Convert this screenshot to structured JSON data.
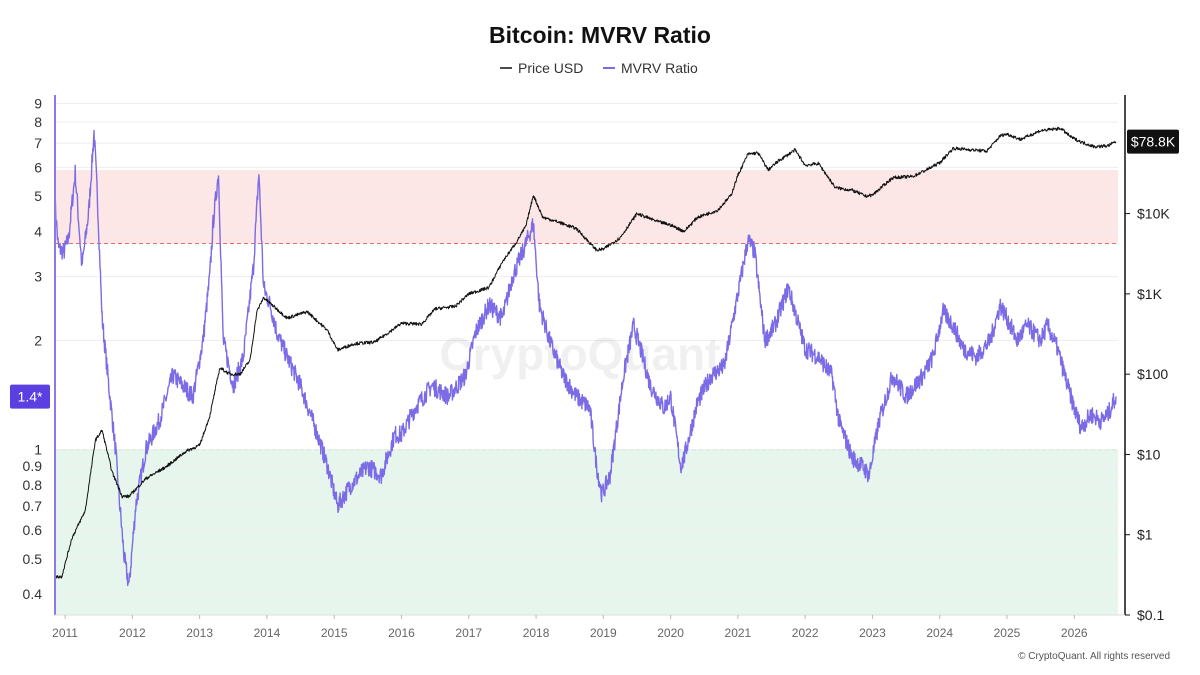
{
  "chart_data": {
    "type": "line",
    "title": "Bitcoin: MVRV Ratio",
    "watermark": "CryptoQuant",
    "copyright": "© CryptoQuant. All rights reserved",
    "legend": {
      "placement": "top-center",
      "entries": [
        "Price USD",
        "MVRV Ratio"
      ]
    },
    "colors": {
      "price": "#111111",
      "mvrv": "#7b6be6",
      "red_zone": "#fde2e2",
      "green_zone": "#e3f4ea",
      "red_line": "#e07070",
      "green_line": "#6cbf88",
      "badge": "#5b3fe0",
      "price_badge": "#111111"
    },
    "xaxis": {
      "ticks": [
        "2011",
        "2012",
        "2013",
        "2014",
        "2015",
        "2016",
        "2017",
        "2018",
        "2019",
        "2020",
        "2021",
        "2022",
        "2023",
        "2024",
        "2025",
        "2026"
      ],
      "range": [
        2010.85,
        2026.65
      ]
    },
    "yaxis_left": {
      "label": "",
      "scale": "log",
      "range": [
        0.35,
        9.5
      ],
      "ticks": [
        "9",
        "8",
        "7",
        "6",
        "5",
        "4",
        "3",
        "2",
        "1",
        "0.9",
        "0.8",
        "0.7",
        "0.6",
        "0.5",
        "0.4"
      ],
      "current_label": "1.4*"
    },
    "yaxis_right": {
      "label": "",
      "scale": "log",
      "range": [
        0.1,
        300000
      ],
      "ticks": [
        "$10K",
        "$1K",
        "$100",
        "$10",
        "$1",
        "$0.1"
      ],
      "current_label": "$78.8K"
    },
    "zones": [
      {
        "name": "",
        "from": 3.7,
        "to": 5.9,
        "axis": "left"
      },
      {
        "name": "",
        "from": 0.35,
        "to": 1.0,
        "axis": "left"
      }
    ],
    "series": [
      {
        "name": "Price USD",
        "axis": "right",
        "x": [
          2010.85,
          2010.95,
          2011.1,
          2011.3,
          2011.45,
          2011.55,
          2011.7,
          2011.85,
          2011.95,
          2012.2,
          2012.5,
          2012.8,
          2013.0,
          2013.15,
          2013.3,
          2013.45,
          2013.6,
          2013.75,
          2013.85,
          2013.95,
          2014.1,
          2014.3,
          2014.6,
          2014.9,
          2015.05,
          2015.3,
          2015.6,
          2015.85,
          2016.0,
          2016.3,
          2016.5,
          2016.8,
          2017.0,
          2017.3,
          2017.5,
          2017.7,
          2017.85,
          2017.96,
          2018.1,
          2018.3,
          2018.6,
          2018.9,
          2019.0,
          2019.25,
          2019.5,
          2019.8,
          2020.0,
          2020.2,
          2020.4,
          2020.7,
          2020.9,
          2021.0,
          2021.15,
          2021.3,
          2021.45,
          2021.6,
          2021.85,
          2022.0,
          2022.2,
          2022.45,
          2022.7,
          2022.9,
          2023.0,
          2023.3,
          2023.6,
          2023.8,
          2024.0,
          2024.2,
          2024.5,
          2024.7,
          2024.9,
          2025.0,
          2025.2,
          2025.5,
          2025.8,
          2025.95,
          2026.1,
          2026.3,
          2026.5,
          2026.62
        ],
        "values": [
          0.3,
          0.3,
          0.9,
          2.0,
          15,
          20,
          6,
          3,
          3,
          5,
          7,
          11,
          13,
          30,
          120,
          100,
          100,
          150,
          600,
          900,
          700,
          500,
          600,
          350,
          200,
          240,
          250,
          350,
          430,
          420,
          650,
          700,
          1000,
          1200,
          2500,
          4300,
          7000,
          17000,
          9000,
          8000,
          6500,
          3500,
          3600,
          5000,
          10000,
          8000,
          7200,
          6000,
          9000,
          11000,
          17000,
          30000,
          55000,
          57000,
          35000,
          45000,
          62000,
          40000,
          42000,
          21000,
          19500,
          16500,
          17000,
          28000,
          29000,
          35000,
          43000,
          65000,
          62000,
          60000,
          93000,
          98000,
          84000,
          108000,
          115000,
          90000,
          78000,
          68000,
          70000,
          78800
        ]
      },
      {
        "name": "MVRV Ratio",
        "axis": "left",
        "x": [
          2010.85,
          2010.9,
          2010.98,
          2011.05,
          2011.15,
          2011.25,
          2011.35,
          2011.43,
          2011.48,
          2011.55,
          2011.65,
          2011.75,
          2011.8,
          2011.88,
          2011.95,
          2012.05,
          2012.2,
          2012.4,
          2012.6,
          2012.75,
          2012.9,
          2013.05,
          2013.15,
          2013.2,
          2013.28,
          2013.35,
          2013.5,
          2013.65,
          2013.8,
          2013.88,
          2013.95,
          2014.05,
          2014.15,
          2014.3,
          2014.5,
          2014.75,
          2014.9,
          2015.05,
          2015.25,
          2015.5,
          2015.7,
          2015.9,
          2016.0,
          2016.2,
          2016.45,
          2016.7,
          2016.95,
          2017.1,
          2017.3,
          2017.5,
          2017.65,
          2017.8,
          2017.96,
          2018.05,
          2018.2,
          2018.4,
          2018.6,
          2018.8,
          2018.9,
          2018.98,
          2019.1,
          2019.3,
          2019.45,
          2019.55,
          2019.7,
          2019.9,
          2020.0,
          2020.15,
          2020.2,
          2020.4,
          2020.6,
          2020.8,
          2020.95,
          2021.05,
          2021.15,
          2021.25,
          2021.4,
          2021.55,
          2021.75,
          2021.85,
          2022.0,
          2022.2,
          2022.4,
          2022.5,
          2022.7,
          2022.85,
          2022.95,
          2023.1,
          2023.3,
          2023.5,
          2023.75,
          2023.9,
          2024.05,
          2024.2,
          2024.35,
          2024.55,
          2024.75,
          2024.9,
          2025.0,
          2025.15,
          2025.3,
          2025.5,
          2025.6,
          2025.75,
          2025.9,
          2026.0,
          2026.1,
          2026.25,
          2026.4,
          2026.5,
          2026.62
        ],
        "values": [
          4.8,
          3.6,
          3.5,
          3.8,
          5.8,
          3.2,
          4.5,
          7.5,
          5.0,
          2.3,
          1.5,
          1.0,
          0.75,
          0.5,
          0.42,
          0.7,
          1.0,
          1.2,
          1.6,
          1.5,
          1.4,
          2.0,
          3.0,
          4.2,
          5.8,
          2.0,
          1.5,
          1.8,
          3.2,
          5.8,
          2.8,
          2.5,
          2.1,
          1.8,
          1.5,
          1.1,
          0.9,
          0.7,
          0.8,
          0.9,
          0.85,
          1.1,
          1.1,
          1.3,
          1.5,
          1.4,
          1.6,
          2.1,
          2.5,
          2.3,
          3.0,
          3.5,
          4.2,
          2.5,
          2.0,
          1.6,
          1.4,
          1.3,
          0.9,
          0.75,
          0.85,
          1.6,
          2.2,
          1.9,
          1.5,
          1.3,
          1.4,
          0.9,
          0.95,
          1.35,
          1.6,
          1.7,
          2.4,
          3.0,
          3.8,
          3.5,
          2.0,
          2.2,
          2.8,
          2.4,
          1.9,
          1.8,
          1.6,
          1.2,
          0.95,
          0.9,
          0.85,
          1.2,
          1.6,
          1.4,
          1.6,
          1.8,
          2.4,
          2.2,
          1.9,
          1.8,
          2.0,
          2.5,
          2.3,
          2.0,
          2.2,
          2.0,
          2.2,
          1.9,
          1.5,
          1.3,
          1.15,
          1.25,
          1.2,
          1.25,
          1.4
        ]
      }
    ]
  }
}
